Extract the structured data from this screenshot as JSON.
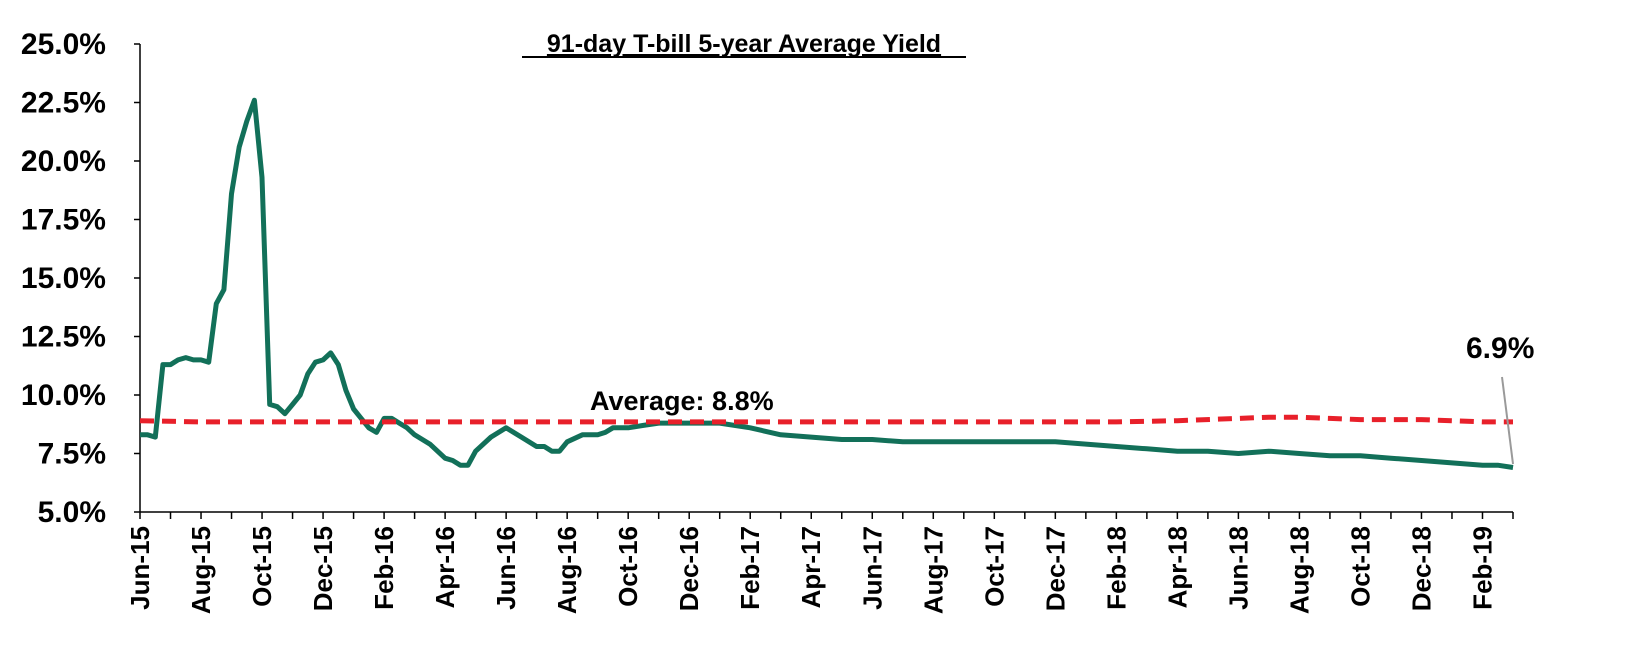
{
  "chart_data": {
    "type": "line",
    "title": "91-day T-bill 5-year Average Yield",
    "xlabel": "",
    "ylabel": "",
    "ylim": [
      5.0,
      25.0
    ],
    "y_ticks": [
      "5.0%",
      "7.5%",
      "10.0%",
      "12.5%",
      "15.0%",
      "17.5%",
      "20.0%",
      "22.5%",
      "25.0%"
    ],
    "y_tick_values": [
      5.0,
      7.5,
      10.0,
      12.5,
      15.0,
      17.5,
      20.0,
      22.5,
      25.0
    ],
    "x_ticks": [
      "Jun-15",
      "Aug-15",
      "Oct-15",
      "Dec-15",
      "Feb-16",
      "Apr-16",
      "Jun-16",
      "Aug-16",
      "Oct-16",
      "Dec-16",
      "Feb-17",
      "Apr-17",
      "Jun-17",
      "Aug-17",
      "Oct-17",
      "Dec-17",
      "Feb-18",
      "Apr-18",
      "Jun-18",
      "Aug-18",
      "Oct-18",
      "Dec-18",
      "Feb-19"
    ],
    "x_month_index_range": [
      0,
      45
    ],
    "grid": false,
    "legend": "none",
    "series": [
      {
        "color": "#127059",
        "style": "solid",
        "x": [
          0,
          0.25,
          0.5,
          0.75,
          1.0,
          1.25,
          1.5,
          1.75,
          2.0,
          2.25,
          2.5,
          2.75,
          3.0,
          3.25,
          3.5,
          3.75,
          4.0,
          4.25,
          4.5,
          4.75,
          5.0,
          5.25,
          5.5,
          5.75,
          6.0,
          6.25,
          6.5,
          6.75,
          7.0,
          7.25,
          7.5,
          7.75,
          8.0,
          8.25,
          8.5,
          8.75,
          9.0,
          9.5,
          10.0,
          10.25,
          10.5,
          10.75,
          11.0,
          11.5,
          12.0,
          12.5,
          13.0,
          13.25,
          13.5,
          13.75,
          14.0,
          14.5,
          15.0,
          15.25,
          15.5,
          16.0,
          16.5,
          17.0,
          17.5,
          18.0,
          18.5,
          19.0,
          20.0,
          21.0,
          22.0,
          23.0,
          24.0,
          25.0,
          26.0,
          27.0,
          28.0,
          29.0,
          30.0,
          31.0,
          32.0,
          33.0,
          34.0,
          35.0,
          36.0,
          37.0,
          38.0,
          39.0,
          40.0,
          41.0,
          42.0,
          43.0,
          44.0,
          44.5,
          45.0
        ],
        "y": [
          8.3,
          8.3,
          8.2,
          11.3,
          11.3,
          11.5,
          11.6,
          11.5,
          11.5,
          11.4,
          13.9,
          14.5,
          18.6,
          20.6,
          21.7,
          22.6,
          19.3,
          9.6,
          9.5,
          9.2,
          9.6,
          10.0,
          10.9,
          11.4,
          11.5,
          11.8,
          11.3,
          10.2,
          9.4,
          9.0,
          8.6,
          8.4,
          9.0,
          9.0,
          8.8,
          8.6,
          8.3,
          7.9,
          7.3,
          7.2,
          7.0,
          7.0,
          7.6,
          8.2,
          8.6,
          8.2,
          7.8,
          7.8,
          7.6,
          7.6,
          8.0,
          8.3,
          8.3,
          8.4,
          8.6,
          8.6,
          8.7,
          8.8,
          8.8,
          8.8,
          8.8,
          8.8,
          8.6,
          8.3,
          8.2,
          8.1,
          8.1,
          8.0,
          8.0,
          8.0,
          8.0,
          8.0,
          8.0,
          7.9,
          7.8,
          7.7,
          7.6,
          7.6,
          7.5,
          7.6,
          7.5,
          7.4,
          7.4,
          7.3,
          7.2,
          7.1,
          7.0,
          7.0,
          6.9
        ]
      },
      {
        "color": "#e8202a",
        "style": "dashed",
        "x": [
          0,
          2,
          4,
          6,
          8,
          10,
          12,
          14,
          16,
          18,
          20,
          22,
          24,
          26,
          28,
          30,
          32,
          34,
          36,
          37,
          38,
          39,
          40,
          41,
          42,
          43,
          44,
          45
        ],
        "y": [
          8.9,
          8.85,
          8.85,
          8.85,
          8.85,
          8.85,
          8.85,
          8.85,
          8.85,
          8.85,
          8.85,
          8.85,
          8.85,
          8.85,
          8.85,
          8.85,
          8.85,
          8.9,
          9.0,
          9.05,
          9.05,
          9.0,
          8.95,
          8.95,
          8.95,
          8.9,
          8.85,
          8.85
        ]
      }
    ],
    "annotations": {
      "average_label": "Average: 8.8%",
      "end_label": "6.9%"
    }
  }
}
